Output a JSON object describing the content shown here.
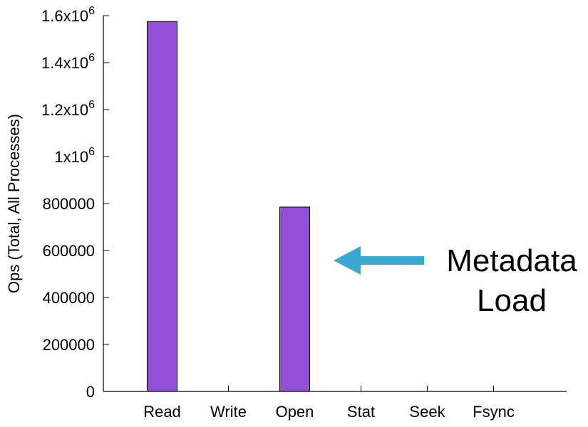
{
  "chart_data": {
    "type": "bar",
    "categories": [
      "Read",
      "Write",
      "Open",
      "Stat",
      "Seek",
      "Fsync"
    ],
    "values": [
      1575000,
      0,
      785000,
      0,
      0,
      0
    ],
    "xlabel": "",
    "ylabel": "Ops (Total, All Processes)",
    "ylim": [
      0,
      1600000
    ],
    "yticks": [
      {
        "value": 0,
        "label": "0"
      },
      {
        "value": 200000,
        "label": "200000"
      },
      {
        "value": 400000,
        "label": "400000"
      },
      {
        "value": 600000,
        "label": "600000"
      },
      {
        "value": 800000,
        "label": "800000"
      },
      {
        "value": 1000000,
        "label": "1x10",
        "exp": "6"
      },
      {
        "value": 1200000,
        "label": "1.2x10",
        "exp": "6"
      },
      {
        "value": 1400000,
        "label": "1.4x10",
        "exp": "6"
      },
      {
        "value": 1600000,
        "label": "1.6x10",
        "exp": "6"
      }
    ],
    "bar_color": "#9150d6",
    "grid": false,
    "annotation": {
      "lines": [
        "Metadata",
        "Load"
      ],
      "target": "Open",
      "arrow_color": "#3aa9d0"
    }
  }
}
